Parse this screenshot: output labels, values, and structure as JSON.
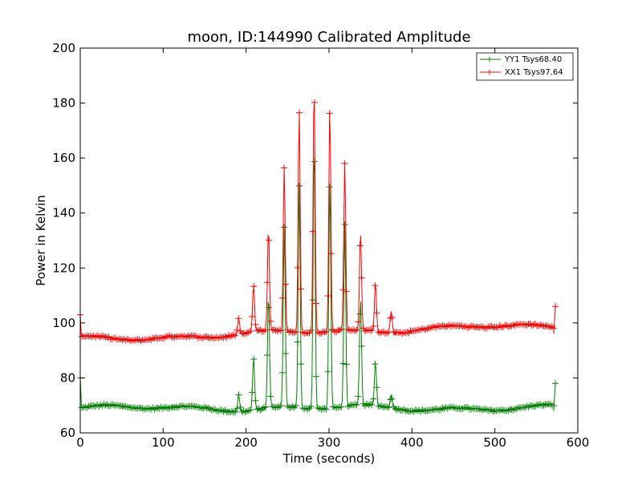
{
  "chart_data": {
    "type": "line",
    "title": "moon, ID:144990 Calibrated Amplitude",
    "xlabel": "Time (seconds)",
    "ylabel": "Power in Kelvin",
    "xlim": [
      0,
      600
    ],
    "ylim": [
      60,
      200
    ],
    "xticks": [
      0,
      100,
      200,
      300,
      400,
      500,
      600
    ],
    "yticks": [
      60,
      80,
      100,
      120,
      140,
      160,
      180,
      200
    ],
    "grid": false,
    "legend_position": "top-right",
    "marker": "+",
    "series": [
      {
        "name": "YY1 Tsys68.40",
        "color": "#008000",
        "baseline": 69,
        "start": [
          0,
          80
        ],
        "end": [
          573,
          78
        ],
        "drop": [
          571,
          68
        ],
        "peaks": [
          {
            "x": 191,
            "y": 75
          },
          {
            "x": 209,
            "y": 88
          },
          {
            "x": 227,
            "y": 110
          },
          {
            "x": 246,
            "y": 135
          },
          {
            "x": 264,
            "y": 150
          },
          {
            "x": 282,
            "y": 165
          },
          {
            "x": 301,
            "y": 152
          },
          {
            "x": 319,
            "y": 135
          },
          {
            "x": 338,
            "y": 108
          },
          {
            "x": 356,
            "y": 85
          },
          {
            "x": 375,
            "y": 74
          }
        ]
      },
      {
        "name": "XX1 Tsys97.64",
        "color": "#ff0000",
        "baseline": 94,
        "start": [
          0,
          103
        ],
        "end": [
          573,
          106
        ],
        "drop": [
          571,
          96
        ],
        "peaks": [
          {
            "x": 191,
            "y": 100
          },
          {
            "x": 209,
            "y": 111
          },
          {
            "x": 227,
            "y": 131
          },
          {
            "x": 246,
            "y": 154
          },
          {
            "x": 264,
            "y": 175
          },
          {
            "x": 282,
            "y": 184
          },
          {
            "x": 301,
            "y": 176
          },
          {
            "x": 319,
            "y": 155
          },
          {
            "x": 338,
            "y": 130
          },
          {
            "x": 356,
            "y": 112
          },
          {
            "x": 375,
            "y": 102
          }
        ]
      }
    ]
  }
}
